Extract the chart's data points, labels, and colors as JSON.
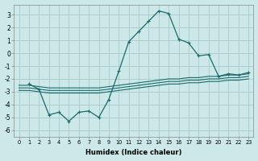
{
  "xlabel": "Humidex (Indice chaleur)",
  "bg_color": "#cce8e8",
  "grid_color": "#b0cccc",
  "line_color": "#1a6b6b",
  "ylim": [
    -6.5,
    3.8
  ],
  "xlim": [
    -0.5,
    23.5
  ],
  "yticks": [
    -6,
    -5,
    -4,
    -3,
    -2,
    -1,
    0,
    1,
    2,
    3
  ],
  "xticks": [
    0,
    1,
    2,
    3,
    4,
    5,
    6,
    7,
    8,
    9,
    10,
    11,
    12,
    13,
    14,
    15,
    16,
    17,
    18,
    19,
    20,
    21,
    22,
    23
  ],
  "line1_x": [
    0,
    1,
    2,
    3,
    4,
    5,
    6,
    7,
    8,
    9,
    10,
    11,
    12,
    13,
    14,
    15,
    16,
    17,
    18,
    19,
    20,
    21,
    22,
    23
  ],
  "line1_y": [
    -2.5,
    -2.5,
    -2.6,
    -2.7,
    -2.7,
    -2.7,
    -2.7,
    -2.7,
    -2.7,
    -2.6,
    -2.5,
    -2.4,
    -2.3,
    -2.2,
    -2.1,
    -2.0,
    -2.0,
    -1.9,
    -1.9,
    -1.8,
    -1.8,
    -1.7,
    -1.7,
    -1.6
  ],
  "line2_x": [
    0,
    1,
    2,
    3,
    4,
    5,
    6,
    7,
    8,
    9,
    10,
    11,
    12,
    13,
    14,
    15,
    16,
    17,
    18,
    19,
    20,
    21,
    22,
    23
  ],
  "line2_y": [
    -2.7,
    -2.7,
    -2.8,
    -2.9,
    -2.9,
    -2.9,
    -2.9,
    -2.9,
    -2.9,
    -2.8,
    -2.7,
    -2.6,
    -2.5,
    -2.4,
    -2.3,
    -2.2,
    -2.2,
    -2.1,
    -2.1,
    -2.0,
    -2.0,
    -1.9,
    -1.9,
    -1.8
  ],
  "line3_x": [
    0,
    1,
    2,
    3,
    4,
    5,
    6,
    7,
    8,
    9,
    10,
    11,
    12,
    13,
    14,
    15,
    16,
    17,
    18,
    19,
    20,
    21,
    22,
    23
  ],
  "line3_y": [
    -2.9,
    -2.9,
    -3.0,
    -3.1,
    -3.1,
    -3.1,
    -3.1,
    -3.1,
    -3.1,
    -3.0,
    -2.9,
    -2.8,
    -2.7,
    -2.6,
    -2.5,
    -2.4,
    -2.4,
    -2.3,
    -2.3,
    -2.2,
    -2.2,
    -2.1,
    -2.1,
    -2.0
  ],
  "curve_x": [
    1,
    2,
    3,
    4,
    5,
    6,
    7,
    8,
    9,
    10,
    11,
    12,
    13,
    14,
    15,
    16,
    17,
    18,
    19,
    20,
    21,
    22,
    23
  ],
  "curve_y": [
    -2.4,
    -2.8,
    -4.8,
    -4.6,
    -5.3,
    -4.6,
    -4.5,
    -5.0,
    -3.6,
    -1.4,
    0.9,
    1.7,
    2.5,
    3.3,
    3.1,
    1.1,
    0.8,
    -0.2,
    -0.1,
    -1.8,
    -1.6,
    -1.7,
    -1.5
  ]
}
